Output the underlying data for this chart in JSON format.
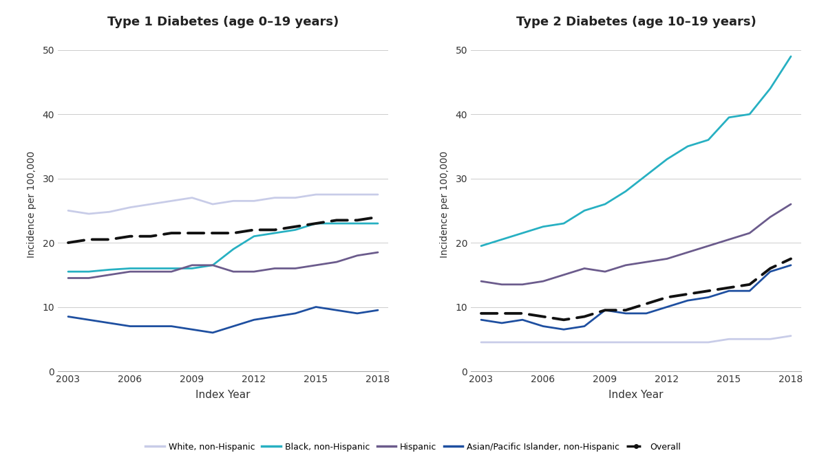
{
  "years": [
    2003,
    2004,
    2005,
    2006,
    2007,
    2008,
    2009,
    2010,
    2011,
    2012,
    2013,
    2014,
    2015,
    2016,
    2017,
    2018
  ],
  "type1": {
    "white": [
      25.0,
      24.5,
      24.8,
      25.5,
      26.0,
      26.5,
      27.0,
      26.0,
      26.5,
      26.5,
      27.0,
      27.0,
      27.5,
      27.5,
      27.5,
      27.5
    ],
    "black": [
      15.5,
      15.5,
      15.8,
      16.0,
      16.0,
      16.0,
      16.0,
      16.5,
      19.0,
      21.0,
      21.5,
      22.0,
      23.0,
      23.0,
      23.0,
      23.0
    ],
    "hispanic": [
      14.5,
      14.5,
      15.0,
      15.5,
      15.5,
      15.5,
      16.5,
      16.5,
      15.5,
      15.5,
      16.0,
      16.0,
      16.5,
      17.0,
      18.0,
      18.5
    ],
    "asian": [
      8.5,
      8.0,
      7.5,
      7.0,
      7.0,
      7.0,
      6.5,
      6.0,
      7.0,
      8.0,
      8.5,
      9.0,
      10.0,
      9.5,
      9.0,
      9.5
    ],
    "overall": [
      20.0,
      20.5,
      20.5,
      21.0,
      21.0,
      21.5,
      21.5,
      21.5,
      21.5,
      22.0,
      22.0,
      22.5,
      23.0,
      23.5,
      23.5,
      24.0
    ]
  },
  "type2": {
    "white": [
      4.5,
      4.5,
      4.5,
      4.5,
      4.5,
      4.5,
      4.5,
      4.5,
      4.5,
      4.5,
      4.5,
      4.5,
      5.0,
      5.0,
      5.0,
      5.5
    ],
    "black": [
      19.5,
      20.5,
      21.5,
      22.5,
      23.0,
      25.0,
      26.0,
      28.0,
      30.5,
      33.0,
      35.0,
      36.0,
      39.5,
      40.0,
      44.0,
      49.0
    ],
    "hispanic": [
      14.0,
      13.5,
      13.5,
      14.0,
      15.0,
      16.0,
      15.5,
      16.5,
      17.0,
      17.5,
      18.5,
      19.5,
      20.5,
      21.5,
      24.0,
      26.0
    ],
    "asian": [
      8.0,
      7.5,
      8.0,
      7.0,
      6.5,
      7.0,
      9.5,
      9.0,
      9.0,
      10.0,
      11.0,
      11.5,
      12.5,
      12.5,
      15.5,
      16.5
    ],
    "overall": [
      9.0,
      9.0,
      9.0,
      8.5,
      8.0,
      8.5,
      9.5,
      9.5,
      10.5,
      11.5,
      12.0,
      12.5,
      13.0,
      13.5,
      16.0,
      17.5
    ]
  },
  "colors": {
    "white": "#c8cce8",
    "black": "#27b0c2",
    "hispanic": "#6b5b8c",
    "asian": "#1e4fa0",
    "overall": "#111111"
  },
  "title1": "Type 1 Diabetes (age 0–19 years)",
  "title2": "Type 2 Diabetes (age 10–19 years)",
  "ylabel": "Incidence per 100,000",
  "xlabel": "Index Year",
  "ylim": [
    0,
    52
  ],
  "yticks": [
    0,
    10,
    20,
    30,
    40,
    50
  ],
  "xticks": [
    2003,
    2006,
    2009,
    2012,
    2015,
    2018
  ],
  "legend_labels": [
    "White, non-Hispanic",
    "Black, non-Hispanic",
    "Hispanic",
    "Asian/Pacific Islander, non-Hispanic",
    "Overall"
  ]
}
